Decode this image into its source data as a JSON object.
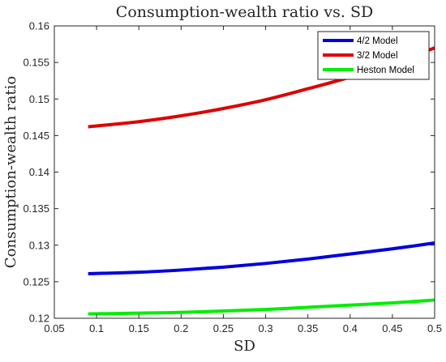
{
  "chart_data": {
    "type": "line",
    "title": "Consumption-wealth ratio vs. SD",
    "xlabel": "SD",
    "ylabel": "Consumption-wealth ratio",
    "xlim": [
      0.05,
      0.5
    ],
    "ylim": [
      0.12,
      0.16
    ],
    "xticks": [
      "0.05",
      "0.1",
      "0.15",
      "0.2",
      "0.25",
      "0.3",
      "0.35",
      "0.4",
      "0.45",
      "0.5"
    ],
    "yticks": [
      "0.12",
      "0.125",
      "0.13",
      "0.135",
      "0.14",
      "0.145",
      "0.15",
      "0.155",
      "0.16"
    ],
    "grid": false,
    "legend_position": "top-right",
    "series": [
      {
        "name": "4/2 Model",
        "color": "#0000dd",
        "x": [
          0.09,
          0.15,
          0.2,
          0.25,
          0.3,
          0.35,
          0.4,
          0.45,
          0.5
        ],
        "y": [
          0.1261,
          0.1263,
          0.1266,
          0.127,
          0.1275,
          0.1281,
          0.1288,
          0.1295,
          0.1303
        ]
      },
      {
        "name": "3/2 Model",
        "color": "#dd0000",
        "x": [
          0.09,
          0.15,
          0.2,
          0.25,
          0.3,
          0.35,
          0.4,
          0.45,
          0.5
        ],
        "y": [
          0.1462,
          0.1469,
          0.1477,
          0.1487,
          0.1499,
          0.1514,
          0.153,
          0.1549,
          0.157
        ]
      },
      {
        "name": "Heston Model",
        "color": "#00ee00",
        "x": [
          0.09,
          0.15,
          0.2,
          0.25,
          0.3,
          0.35,
          0.4,
          0.45,
          0.5
        ],
        "y": [
          0.1206,
          0.1207,
          0.1208,
          0.121,
          0.1212,
          0.1215,
          0.1218,
          0.1221,
          0.1225
        ]
      }
    ]
  }
}
